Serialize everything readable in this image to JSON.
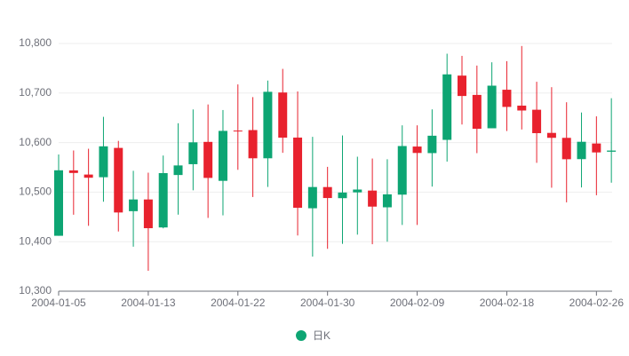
{
  "chart_data": {
    "type": "candlestick",
    "categories": [
      "2004-01-05",
      null,
      null,
      null,
      null,
      null,
      "2004-01-13",
      null,
      null,
      null,
      null,
      null,
      "2004-01-22",
      null,
      null,
      null,
      null,
      null,
      "2004-01-30",
      null,
      null,
      null,
      null,
      null,
      "2004-02-09",
      null,
      null,
      null,
      null,
      null,
      "2004-02-18",
      null,
      null,
      null,
      null,
      null,
      "2004-02-26",
      null
    ],
    "series": [
      {
        "name": "日K",
        "color": "#0da573",
        "down_color": "#e8222e",
        "open": [
          10411.85,
          10543.85,
          10535.46,
          10530.07,
          10589.25,
          10461.55,
          10485.18,
          10428.67,
          10534.52,
          10556.37,
          10601.4,
          10522.77,
          10624.22,
          10625.25,
          10568.29,
          10701.1,
          10610.07,
          10467.41,
          10510.22,
          10487.78,
          10499.48,
          10503.11,
          10469.33,
          10494.89,
          10592,
          10578.74,
          10605.48,
          10735.18,
          10696.22,
          10628.88,
          10706.68,
          10674.59,
          10666.29,
          10619.55,
          10609.55,
          10566.59,
          10598.14,
          10581.55
        ],
        "close": [
          10544.07,
          10538.66,
          10529.03,
          10592.44,
          10458.89,
          10485.18,
          10427.18,
          10538.37,
          10553.85,
          10600.51,
          10528.66,
          10623.62,
          10623.18,
          10568.29,
          10702.51,
          10609.92,
          10468.37,
          10510.29,
          10488.07,
          10499.18,
          10505.18,
          10470.74,
          10495.55,
          10593.03,
          10579.03,
          10613.85,
          10737.7,
          10694.07,
          10627.85,
          10714.88,
          10671.99,
          10664.73,
          10619.03,
          10609.62,
          10566.37,
          10601.62,
          10580.14,
          10583.92
        ],
        "low": [
          10411.85,
          10454.37,
          10432,
          10480.59,
          10420.52,
          10389.85,
          10341.19,
          10426.89,
          10454.52,
          10503.7,
          10447.92,
          10453.11,
          10545.03,
          10490.14,
          10510.44,
          10579.33,
          10412.44,
          10369.92,
          10385.56,
          10395.55,
          10414.15,
          10394.81,
          10399.92,
          10433.7,
          10433.7,
          10511.18,
          10561.55,
          10636.44,
          10578.66,
          10628.88,
          10623.33,
          10626.44,
          10559.11,
          10508.89,
          10479.33,
          10509.4,
          10493.7,
          10519.03
        ],
        "high": [
          10575.92,
          10584.07,
          10587.55,
          10651.99,
          10603.48,
          10543.03,
          10539.25,
          10573.85,
          10639.03,
          10666.88,
          10676.96,
          10665.7,
          10717.4,
          10691.77,
          10725.18,
          10748.81,
          10703.25,
          10611.56,
          10551.03,
          10614.44,
          10571.48,
          10567.85,
          10566.37,
          10634.81,
          10634.81,
          10667.03,
          10779.4,
          10775.03,
          10755.47,
          10762.07,
          10764.36,
          10794.95,
          10722.77,
          10711.84,
          10681.4,
          10660.73,
          10652.96,
          10689.55
        ]
      }
    ],
    "ylim": [
      10300,
      10800
    ],
    "yticks": [
      {
        "value": 10300,
        "label": "10,300"
      },
      {
        "value": 10400,
        "label": "10,400"
      },
      {
        "value": 10500,
        "label": "10,500"
      },
      {
        "value": 10600,
        "label": "10,600"
      },
      {
        "value": 10700,
        "label": "10,700"
      },
      {
        "value": 10800,
        "label": "10,800"
      }
    ],
    "grid": true
  }
}
